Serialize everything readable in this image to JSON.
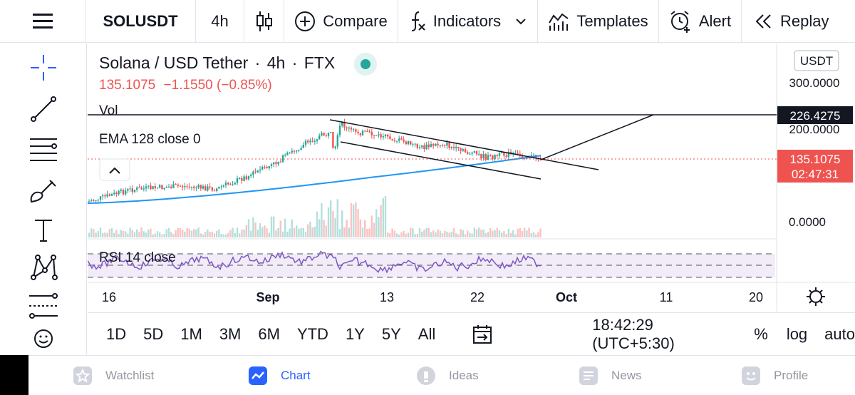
{
  "topbar": {
    "menu_icon": "hamburger-icon",
    "symbol": "SOLUSDT",
    "interval": "4h",
    "chart_type_icon": "candles-icon",
    "compare_label": "Compare",
    "indicators_label": "Indicators",
    "templates_label": "Templates",
    "alert_label": "Alert",
    "replay_label": "Replay"
  },
  "lefttools": [
    "crosshair-icon",
    "trendline-icon",
    "fib-icon",
    "brush-icon",
    "text-icon",
    "pattern-icon",
    "measure-icon",
    "emoji-icon"
  ],
  "legend": {
    "name": "Solana / USD Tether",
    "sep1": "·",
    "interval": "4h",
    "sep2": "·",
    "exchange": "FTX",
    "price": "135.1075",
    "change": "−1.1550 (−0.85%)",
    "vol": "Vol",
    "ema": "EMA 128 close 0",
    "rsi": "RSI 14 close"
  },
  "price_axis": {
    "currency": "USDT",
    "labels": [
      "300.0000",
      "200.0000",
      "0.0000"
    ],
    "line_value": "226.4275",
    "last_price": "135.1075",
    "countdown": "02:47:31"
  },
  "time_axis": [
    "16",
    "Sep",
    "13",
    "22",
    "Oct",
    "11",
    "20"
  ],
  "rangebar": {
    "ranges": [
      "1D",
      "5D",
      "1M",
      "3M",
      "6M",
      "YTD",
      "1Y",
      "5Y",
      "All"
    ],
    "time": "18:42:29 (UTC+5:30)",
    "percent": "%",
    "log": "log",
    "auto": "auto"
  },
  "nav": {
    "watchlist": "Watchlist",
    "chart": "Chart",
    "ideas": "Ideas",
    "news": "News",
    "profile": "Profile"
  },
  "colors": {
    "up": "#26a69a",
    "down": "#ef5350",
    "ema": "#2196f3",
    "rsi": "#7e57c2",
    "accent": "#2962ff"
  },
  "chart_data": {
    "type": "line",
    "symbol": "SOLUSDT",
    "interval": "4h",
    "last_price": 135.1075,
    "horizontal_line": 226.4275,
    "y_labels": [
      0,
      200,
      300
    ],
    "x_labels": [
      "16",
      "Sep",
      "13",
      "22",
      "Oct",
      "11",
      "20"
    ]
  }
}
